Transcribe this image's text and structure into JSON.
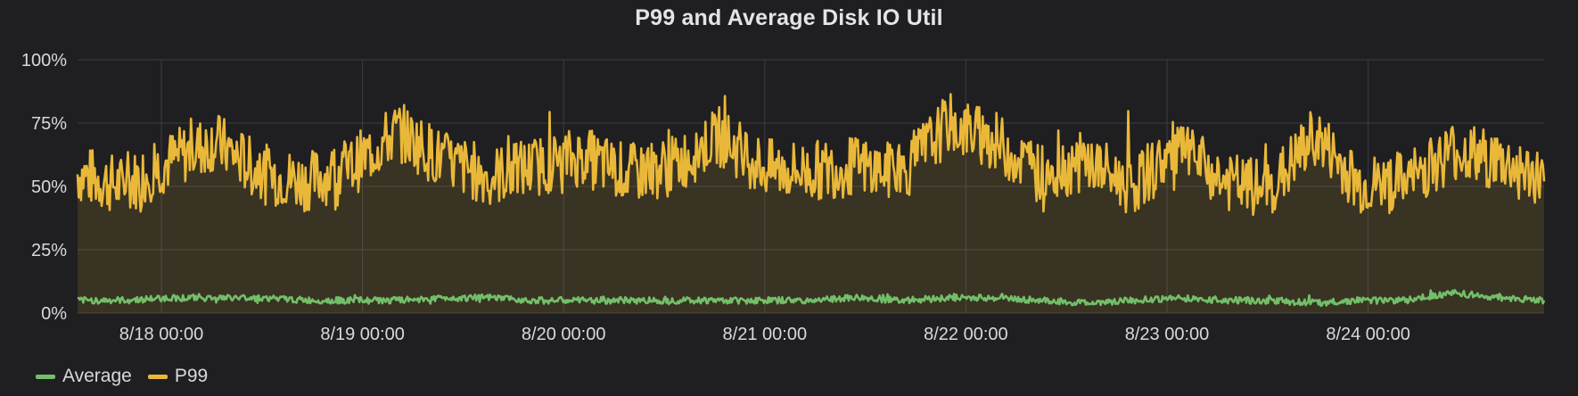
{
  "panel": {
    "title": "P99 and Average Disk IO Util"
  },
  "chart_data": {
    "type": "line",
    "title": "P99 and Average Disk IO Util",
    "xlabel": "",
    "ylabel": "",
    "y_unit": "%",
    "ylim": [
      0,
      100
    ],
    "y_ticks": [
      "0%",
      "25%",
      "50%",
      "75%",
      "100%"
    ],
    "x_range": [
      "8/17 14:00",
      "8/24 21:00"
    ],
    "x_tick_labels": [
      "8/18 00:00",
      "8/19 00:00",
      "8/20 00:00",
      "8/21 00:00",
      "8/22 00:00",
      "8/23 00:00",
      "8/24 00:00"
    ],
    "grid": true,
    "legend": "bottom-left",
    "sample_interval_hours": 6,
    "series": [
      {
        "name": "Average",
        "color": "#73bf69",
        "fill": false,
        "values": [
          5,
          5,
          6,
          6,
          6,
          5,
          5,
          5,
          6,
          6,
          5,
          5,
          5,
          5,
          5,
          5,
          5,
          6,
          5,
          6,
          6,
          5,
          4,
          5,
          6,
          5,
          5,
          4,
          5,
          5,
          8,
          6,
          5
        ]
      },
      {
        "name": "P99",
        "color": "#eab839",
        "fill": true,
        "values": [
          55,
          50,
          60,
          68,
          55,
          52,
          58,
          72,
          60,
          54,
          58,
          62,
          55,
          58,
          70,
          57,
          56,
          58,
          55,
          75,
          68,
          55,
          60,
          50,
          65,
          52,
          48,
          70,
          50,
          52,
          64,
          60,
          52
        ]
      }
    ]
  }
}
